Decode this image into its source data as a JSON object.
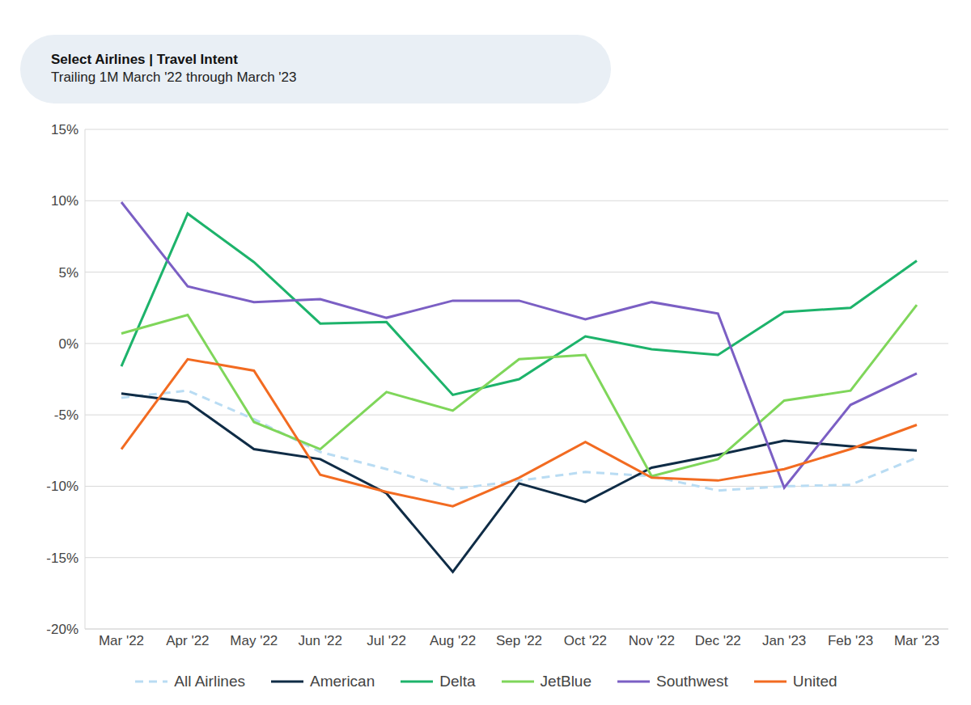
{
  "chart_data": {
    "type": "line",
    "title": "Select Airlines | Travel Intent",
    "subtitle": "Trailing 1M March '22 through March '23",
    "categories": [
      "Mar '22",
      "Apr '22",
      "May '22",
      "Jun '22",
      "Jul '22",
      "Aug '22",
      "Sep '22",
      "Oct '22",
      "Nov '22",
      "Dec '22",
      "Jan '23",
      "Feb '23",
      "Mar '23"
    ],
    "series": [
      {
        "name": "All Airlines",
        "color": "#b9dcf3",
        "line_style": "dashed",
        "values": [
          -3.8,
          -3.3,
          -5.3,
          -7.6,
          -8.8,
          -10.2,
          -9.6,
          -9.0,
          -9.3,
          -10.3,
          -10.0,
          -9.9,
          -8.0
        ]
      },
      {
        "name": "American",
        "color": "#0f2c46",
        "line_style": "solid",
        "values": [
          -3.5,
          -4.1,
          -7.4,
          -8.1,
          -10.5,
          -16.0,
          -9.8,
          -11.1,
          -8.7,
          -7.8,
          -6.8,
          -7.2,
          -7.5
        ]
      },
      {
        "name": "Delta",
        "color": "#1db36b",
        "line_style": "solid",
        "values": [
          -1.6,
          9.1,
          5.7,
          1.4,
          1.5,
          -3.6,
          -2.5,
          0.5,
          -0.4,
          -0.8,
          2.2,
          2.5,
          5.8
        ]
      },
      {
        "name": "JetBlue",
        "color": "#7fd65a",
        "line_style": "solid",
        "values": [
          0.7,
          2.0,
          -5.5,
          -7.4,
          -3.4,
          -4.7,
          -1.1,
          -0.8,
          -9.3,
          -8.1,
          -4.0,
          -3.3,
          2.7
        ]
      },
      {
        "name": "Southwest",
        "color": "#7b5fc4",
        "line_style": "solid",
        "values": [
          9.9,
          4.0,
          2.9,
          3.1,
          1.8,
          3.0,
          3.0,
          1.7,
          2.9,
          2.1,
          -10.1,
          -4.3,
          -2.1
        ]
      },
      {
        "name": "United",
        "color": "#f26b21",
        "line_style": "solid",
        "values": [
          -7.4,
          -1.1,
          -1.9,
          -9.2,
          -10.4,
          -11.4,
          -9.4,
          -6.9,
          -9.4,
          -9.6,
          -8.8,
          -7.4,
          -5.7
        ]
      }
    ],
    "ylim": [
      -20,
      15
    ],
    "yticks": [
      {
        "value": -20,
        "label": "-20%"
      },
      {
        "value": -15,
        "label": "-15%"
      },
      {
        "value": -10,
        "label": "-10%"
      },
      {
        "value": -5,
        "label": "-5%"
      },
      {
        "value": 0,
        "label": "0%"
      },
      {
        "value": 5,
        "label": "5%"
      },
      {
        "value": 10,
        "label": "10%"
      },
      {
        "value": 15,
        "label": "15%"
      }
    ],
    "grid": true,
    "legend": "bottom"
  }
}
